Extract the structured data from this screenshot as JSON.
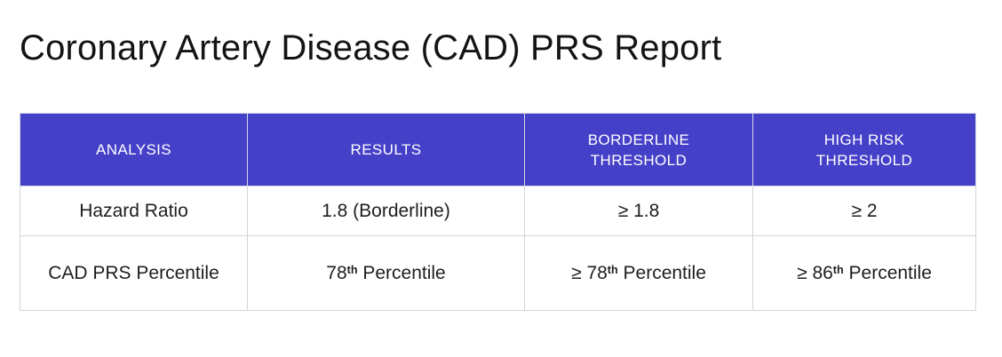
{
  "title": "Coronary Artery Disease (CAD) PRS Report",
  "colors": {
    "title_text": "#141414",
    "header_bg": "#4540c8",
    "header_text": "#ffffff",
    "header_border": "#d6d6e6",
    "border": "#d4d4d4",
    "body_text": "#1e1e1e",
    "alert_text": "#e8472b"
  },
  "table": {
    "headers": [
      {
        "line1": "ANALYSIS",
        "line2": ""
      },
      {
        "line1": "RESULTS",
        "line2": ""
      },
      {
        "line1": "BORDERLINE",
        "line2": "THRESHOLD"
      },
      {
        "line1": "HIGH RISK",
        "line2": "THRESHOLD"
      }
    ],
    "rows": [
      {
        "analysis": "Hazard Ratio",
        "result": {
          "pre": "1.8 (Borderline)",
          "sup": "",
          "post": ""
        },
        "borderline": {
          "pre": "≥ 1.8",
          "sup": "",
          "post": ""
        },
        "high_risk": {
          "pre": "≥ 2",
          "sup": "",
          "post": ""
        }
      },
      {
        "analysis": "CAD PRS Percentile",
        "result": {
          "pre": "78",
          "sup": "th",
          "post": " Percentile"
        },
        "borderline": {
          "pre": "≥ 78",
          "sup": "th",
          "post": " Percentile"
        },
        "high_risk": {
          "pre": "≥ 86",
          "sup": "th",
          "post": " Percentile"
        }
      }
    ]
  }
}
